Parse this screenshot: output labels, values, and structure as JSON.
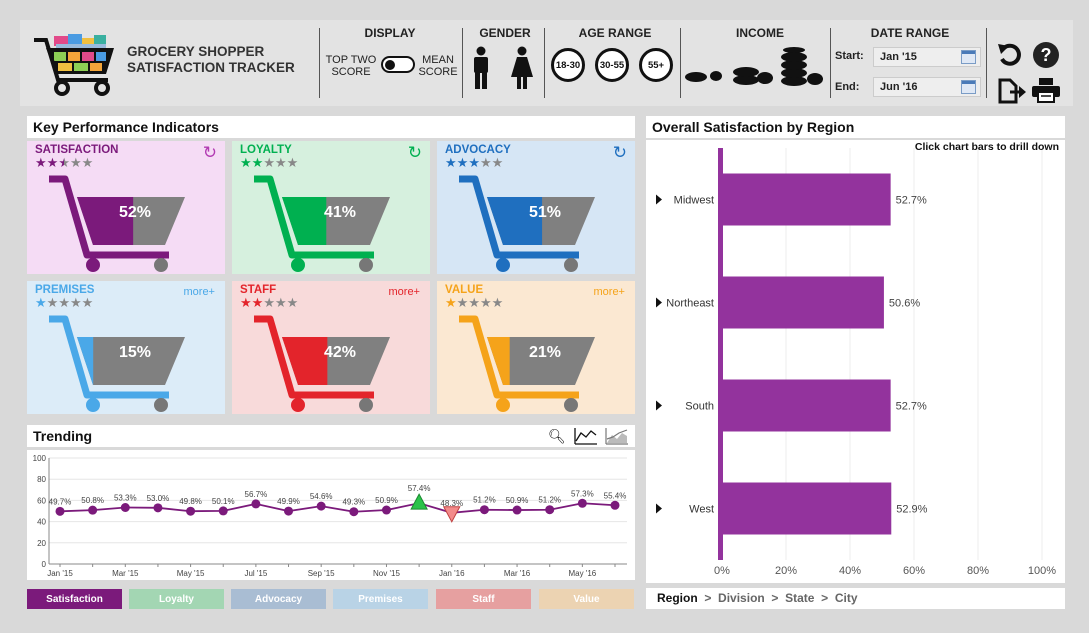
{
  "app": {
    "title_line1": "GROCERY SHOPPER",
    "title_line2": "SATISFACTION TRACKER"
  },
  "display": {
    "label": "DISPLAY",
    "left_line1": "TOP TWO",
    "left_line2": "SCORE",
    "right_line1": "MEAN",
    "right_line2": "SCORE"
  },
  "gender": {
    "label": "GENDER"
  },
  "age": {
    "label": "AGE RANGE",
    "options": [
      "18-30",
      "30-55",
      "55+"
    ]
  },
  "income": {
    "label": "INCOME"
  },
  "date_range": {
    "label": "DATE RANGE",
    "start_label": "Start:",
    "start_value": "Jan '15",
    "end_label": "End:",
    "end_value": "Jun '16"
  },
  "kpi_panel": {
    "title": "Key Performance Indicators",
    "cards": [
      {
        "name": "SATISFACTION",
        "value": "52%",
        "fill": 0.52,
        "stars": 2.5,
        "color": "#7b1a7b",
        "bg": "#f5dcf5",
        "action": "refresh"
      },
      {
        "name": "LOYALTY",
        "value": "41%",
        "fill": 0.41,
        "stars": 2,
        "color": "#00b050",
        "bg": "#d6f0de",
        "action": "refresh"
      },
      {
        "name": "ADVOCACY",
        "value": "51%",
        "fill": 0.51,
        "stars": 3,
        "color": "#1f6fbf",
        "bg": "#d6e6f5",
        "action": "refresh"
      },
      {
        "name": "PREMISES",
        "value": "15%",
        "fill": 0.15,
        "stars": 1,
        "color": "#4aa8e8",
        "bg": "#dcecf8",
        "action": "more+"
      },
      {
        "name": "STAFF",
        "value": "42%",
        "fill": 0.42,
        "stars": 2,
        "color": "#e3242b",
        "bg": "#f8dada",
        "action": "more+"
      },
      {
        "name": "VALUE",
        "value": "21%",
        "fill": 0.21,
        "stars": 1,
        "color": "#f5a31a",
        "bg": "#fbe8d2",
        "action": "more+"
      }
    ]
  },
  "trending": {
    "title": "Trending",
    "legend": [
      {
        "label": "Satisfaction",
        "color": "#7b1a7b",
        "active": true
      },
      {
        "label": "Loyalty",
        "color": "#a3d6b3",
        "active": false
      },
      {
        "label": "Advocacy",
        "color": "#a9bdd3",
        "active": false
      },
      {
        "label": "Premises",
        "color": "#b9d3e6",
        "active": false
      },
      {
        "label": "Staff",
        "color": "#e6a0a0",
        "active": false
      },
      {
        "label": "Value",
        "color": "#ecd3b2",
        "active": false
      }
    ]
  },
  "region_panel": {
    "title": "Overall Satisfaction by Region",
    "hint": "Click chart bars to drill down",
    "breadcrumb": [
      "Region",
      "Division",
      "State",
      "City"
    ]
  },
  "chart_data": [
    {
      "type": "line",
      "title": "Trending",
      "x": [
        "Jan '15",
        "Feb '15",
        "Mar '15",
        "Apr '15",
        "May '15",
        "Jun '15",
        "Jul '15",
        "Aug '15",
        "Sep '15",
        "Oct '15",
        "Nov '15",
        "Dec '15",
        "Jan '16",
        "Feb '16",
        "Mar '16",
        "Apr '16",
        "May '16",
        "Jun '16"
      ],
      "x_tick_labels": [
        "Jan '15",
        "Mar '15",
        "May '15",
        "Jul '15",
        "Sep '15",
        "Nov '15",
        "Jan '16",
        "Mar '16",
        "May '16"
      ],
      "values": [
        49.7,
        50.8,
        53.3,
        53.0,
        49.8,
        50.1,
        56.7,
        49.9,
        54.6,
        49.3,
        50.9,
        57.4,
        48.3,
        51.2,
        50.9,
        51.2,
        57.3,
        55.4
      ],
      "labels": [
        "49.7%",
        "50.8%",
        "53.3%",
        "53.0%",
        "49.8%",
        "50.1%",
        "56.7%",
        "49.9%",
        "54.6%",
        "49.3%",
        "50.9%",
        "57.4%",
        "48.3%",
        "51.2%",
        "50.9%",
        "51.2%",
        "57.3%",
        "55.4%"
      ],
      "markers": {
        "11": "up",
        "12": "down"
      },
      "ylim": [
        0,
        100
      ],
      "yticks": [
        0,
        20,
        40,
        60,
        80,
        100
      ],
      "color": "#7b1a7b",
      "grid": true
    },
    {
      "type": "bar",
      "orientation": "horizontal",
      "title": "Overall Satisfaction by Region",
      "categories": [
        "Midwest",
        "Northeast",
        "South",
        "West"
      ],
      "values": [
        52.7,
        50.6,
        52.7,
        52.9
      ],
      "labels": [
        "52.7%",
        "50.6%",
        "52.7%",
        "52.9%"
      ],
      "xlim": [
        0,
        100
      ],
      "xticks": [
        "0%",
        "20%",
        "40%",
        "60%",
        "80%",
        "100%"
      ],
      "color": "#93339d",
      "grid": true
    }
  ]
}
